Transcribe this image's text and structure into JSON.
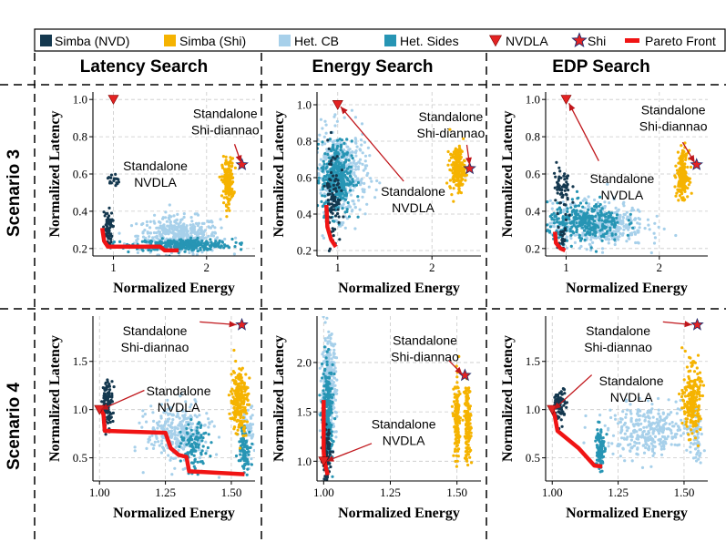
{
  "legend": {
    "items": [
      {
        "label": "Simba (NVD)",
        "kind": "square",
        "color": "#14384f"
      },
      {
        "label": "Simba (Shi)",
        "kind": "square",
        "color": "#f5b301"
      },
      {
        "label": "Het. CB",
        "kind": "square",
        "color": "#a7d0ea"
      },
      {
        "label": "Het. Sides",
        "kind": "square",
        "color": "#2795b4"
      },
      {
        "label": "NVDLA",
        "kind": "triangle",
        "color": "#e32322"
      },
      {
        "label": "Shi",
        "kind": "star",
        "color": "#e32322"
      },
      {
        "label": "Pareto Front",
        "kind": "line",
        "color": "#f01414"
      }
    ]
  },
  "columns": [
    "Latency Search",
    "Energy Search",
    "EDP Search"
  ],
  "rows": [
    "Scenario 3",
    "Scenario 4"
  ],
  "colors": {
    "nvd": "#14384f",
    "shi": "#f5b301",
    "cb": "#a7d0ea",
    "sides": "#2795b4",
    "marker": "#e32322",
    "pareto": "#f01414",
    "grid": "#c9c9c9"
  },
  "chart_data": [
    {
      "id": "s3-latency",
      "type": "scatter",
      "title": "Latency Search",
      "scenario": "Scenario 3",
      "xlabel": "Normalized Energy",
      "ylabel": "Normalized Latency",
      "xlim": [
        0.78,
        2.52
      ],
      "ylim": [
        0.16,
        1.04
      ],
      "xticks": [
        1,
        2
      ],
      "yticks": [
        0.2,
        0.4,
        0.6,
        0.8,
        1.0
      ],
      "xticklabels": [
        "1",
        "2"
      ],
      "yticklabels": [
        "0.2",
        "0.4",
        "0.6",
        "0.8",
        "1.0"
      ],
      "clusters": [
        {
          "series": "cb",
          "cx": 1.7,
          "cy": 0.27,
          "sx": 0.22,
          "sy": 0.05,
          "n": 420
        },
        {
          "series": "sides",
          "cx": 1.75,
          "cy": 0.22,
          "sx": 0.26,
          "sy": 0.015,
          "n": 320
        },
        {
          "series": "nvd",
          "cx": 0.94,
          "cy": 0.3,
          "sx": 0.025,
          "sy": 0.05,
          "n": 70
        },
        {
          "series": "nvd",
          "cx": 1.0,
          "cy": 0.57,
          "sx": 0.03,
          "sy": 0.02,
          "n": 18
        },
        {
          "series": "shi",
          "cx": 2.23,
          "cy": 0.56,
          "sx": 0.03,
          "sy": 0.06,
          "n": 200
        }
      ],
      "pareto": [
        [
          0.88,
          0.31
        ],
        [
          0.9,
          0.24
        ],
        [
          0.94,
          0.21
        ],
        [
          1.5,
          0.21
        ],
        [
          1.55,
          0.19
        ],
        [
          1.7,
          0.19
        ]
      ],
      "nvdla": [
        1.0,
        1.0
      ],
      "shi_star": [
        2.38,
        0.65
      ],
      "annotations": [
        {
          "text": "Standalone\nShi-diannao",
          "at": [
            2.2,
            0.9
          ]
        },
        {
          "text": "Standalone\nNVDLA",
          "at": [
            1.45,
            0.62
          ]
        }
      ],
      "arrows": [
        {
          "from": [
            2.3,
            0.76
          ],
          "to": [
            2.37,
            0.66
          ]
        }
      ]
    },
    {
      "id": "s3-energy",
      "type": "scatter",
      "title": "Energy Search",
      "scenario": "Scenario 3",
      "xlabel": "Normalized Energy",
      "ylabel": "Normalized Latency",
      "xlim": [
        0.78,
        2.52
      ],
      "ylim": [
        0.17,
        1.07
      ],
      "xticks": [
        1,
        2
      ],
      "yticks": [
        0.2,
        0.4,
        0.6,
        0.8,
        1.0
      ],
      "xticklabels": [
        "1",
        "2"
      ],
      "yticklabels": [
        "0.2",
        "0.4",
        "0.6",
        "0.8",
        "1.0"
      ],
      "clusters": [
        {
          "series": "cb",
          "cx": 1.03,
          "cy": 0.62,
          "sx": 0.14,
          "sy": 0.12,
          "n": 450
        },
        {
          "series": "sides",
          "cx": 0.99,
          "cy": 0.6,
          "sx": 0.08,
          "sy": 0.1,
          "n": 350
        },
        {
          "series": "nvd",
          "cx": 0.95,
          "cy": 0.5,
          "sx": 0.04,
          "sy": 0.14,
          "n": 90
        },
        {
          "series": "shi",
          "cx": 2.27,
          "cy": 0.65,
          "sx": 0.04,
          "sy": 0.06,
          "n": 200
        }
      ],
      "pareto": [
        [
          0.88,
          0.45
        ],
        [
          0.89,
          0.33
        ],
        [
          0.93,
          0.26
        ],
        [
          0.98,
          0.22
        ]
      ],
      "nvdla": [
        1.0,
        1.0
      ],
      "shi_star": [
        2.4,
        0.65
      ],
      "annotations": [
        {
          "text": "Standalone\nShi-diannao",
          "at": [
            2.2,
            0.91
          ]
        },
        {
          "text": "Standalone\nNVDLA",
          "at": [
            1.8,
            0.5
          ]
        }
      ],
      "arrows": [
        {
          "from": [
            2.37,
            0.78
          ],
          "to": [
            2.4,
            0.67
          ]
        },
        {
          "from": [
            1.7,
            0.58
          ],
          "to": [
            1.03,
            0.99
          ]
        }
      ]
    },
    {
      "id": "s3-edp",
      "type": "scatter",
      "title": "EDP Search",
      "scenario": "Scenario 3",
      "xlabel": "Normalized Energy",
      "ylabel": "Normalized Latency",
      "xlim": [
        0.78,
        2.52
      ],
      "ylim": [
        0.16,
        1.04
      ],
      "xticks": [
        1,
        2
      ],
      "yticks": [
        0.2,
        0.4,
        0.6,
        0.8,
        1.0
      ],
      "xticklabels": [
        "1",
        "2"
      ],
      "yticklabels": [
        "0.2",
        "0.4",
        "0.6",
        "0.8",
        "1.0"
      ],
      "clusters": [
        {
          "series": "cb",
          "cx": 1.35,
          "cy": 0.33,
          "sx": 0.25,
          "sy": 0.06,
          "n": 450
        },
        {
          "series": "sides",
          "cx": 1.2,
          "cy": 0.34,
          "sx": 0.2,
          "sy": 0.05,
          "n": 320
        },
        {
          "series": "nvd",
          "cx": 0.96,
          "cy": 0.5,
          "sx": 0.05,
          "sy": 0.08,
          "n": 60
        },
        {
          "series": "nvd",
          "cx": 0.95,
          "cy": 0.25,
          "sx": 0.03,
          "sy": 0.03,
          "n": 25
        },
        {
          "series": "shi",
          "cx": 2.25,
          "cy": 0.6,
          "sx": 0.03,
          "sy": 0.06,
          "n": 200
        }
      ],
      "pareto": [
        [
          0.88,
          0.29
        ],
        [
          0.89,
          0.23
        ],
        [
          0.94,
          0.2
        ],
        [
          0.99,
          0.19
        ]
      ],
      "nvdla": [
        1.0,
        1.0
      ],
      "shi_star": [
        2.4,
        0.65
      ],
      "annotations": [
        {
          "text": "Standalone\nShi-diannao",
          "at": [
            2.15,
            0.92
          ]
        },
        {
          "text": "Standalone\nNVDLA",
          "at": [
            1.6,
            0.55
          ]
        }
      ],
      "arrows": [
        {
          "from": [
            2.25,
            0.77
          ],
          "to": [
            2.38,
            0.66
          ]
        },
        {
          "from": [
            1.35,
            0.67
          ],
          "to": [
            1.03,
            0.98
          ]
        }
      ]
    },
    {
      "id": "s4-latency",
      "type": "scatter",
      "title": "Latency Search",
      "scenario": "Scenario 4",
      "xlabel": "Normalized Energy",
      "ylabel": "Normalized Latency",
      "xlim": [
        0.975,
        1.59
      ],
      "ylim": [
        0.26,
        1.97
      ],
      "xticks": [
        1.0,
        1.25,
        1.5
      ],
      "yticks": [
        0.5,
        1.0,
        1.5
      ],
      "xticklabels": [
        "1.00",
        "1.25",
        "1.50"
      ],
      "yticklabels": [
        "0.5",
        "1.0",
        "1.5"
      ],
      "clusters": [
        {
          "series": "cb",
          "cx": 1.3,
          "cy": 0.75,
          "sx": 0.06,
          "sy": 0.15,
          "n": 300
        },
        {
          "series": "cb",
          "cx": 1.56,
          "cy": 0.75,
          "sx": 0.012,
          "sy": 0.15,
          "n": 60
        },
        {
          "series": "sides",
          "cx": 1.36,
          "cy": 0.6,
          "sx": 0.025,
          "sy": 0.12,
          "n": 100
        },
        {
          "series": "sides",
          "cx": 1.55,
          "cy": 0.6,
          "sx": 0.012,
          "sy": 0.12,
          "n": 80
        },
        {
          "series": "nvd",
          "cx": 1.03,
          "cy": 1.07,
          "sx": 0.01,
          "sy": 0.12,
          "n": 120
        },
        {
          "series": "shi",
          "cx": 1.53,
          "cy": 1.1,
          "sx": 0.016,
          "sy": 0.17,
          "n": 240
        }
      ],
      "pareto": [
        [
          1.0,
          1.03
        ],
        [
          1.015,
          0.95
        ],
        [
          1.02,
          0.78
        ],
        [
          1.25,
          0.76
        ],
        [
          1.27,
          0.6
        ],
        [
          1.3,
          0.53
        ],
        [
          1.33,
          0.51
        ],
        [
          1.34,
          0.36
        ],
        [
          1.55,
          0.33
        ]
      ],
      "nvdla": [
        1.0,
        1.0
      ],
      "shi_star": [
        1.54,
        1.88
      ],
      "annotations": [
        {
          "text": "Standalone\nShi-diannao",
          "at": [
            1.21,
            1.77
          ]
        },
        {
          "text": "Standalone\nNVDLA",
          "at": [
            1.3,
            1.15
          ]
        }
      ],
      "arrows": [
        {
          "from": [
            1.38,
            1.91
          ],
          "to": [
            1.52,
            1.88
          ]
        },
        {
          "from": [
            1.17,
            1.2
          ],
          "to": [
            1.005,
            1.0
          ]
        }
      ]
    },
    {
      "id": "s4-energy",
      "type": "scatter",
      "title": "Energy Search",
      "scenario": "Scenario 4",
      "xlabel": "Normalized Energy",
      "ylabel": "Normalized Latency",
      "xlim": [
        0.975,
        1.59
      ],
      "ylim": [
        0.8,
        2.47
      ],
      "xticks": [
        1.0,
        1.25,
        1.5
      ],
      "yticks": [
        1.0,
        1.5,
        2.0
      ],
      "xticklabels": [
        "1.00",
        "1.25",
        "1.50"
      ],
      "yticklabels": [
        "1.0",
        "1.5",
        "2.0"
      ],
      "clusters": [
        {
          "series": "cb",
          "cx": 1.02,
          "cy": 1.75,
          "sx": 0.014,
          "sy": 0.25,
          "n": 320
        },
        {
          "series": "sides",
          "cx": 1.015,
          "cy": 1.45,
          "sx": 0.01,
          "sy": 0.25,
          "n": 260
        },
        {
          "series": "nvd",
          "cx": 1.01,
          "cy": 1.05,
          "sx": 0.007,
          "sy": 0.13,
          "n": 100
        },
        {
          "series": "shi",
          "cx": 1.5,
          "cy": 1.4,
          "sx": 0.006,
          "sy": 0.2,
          "n": 150
        },
        {
          "series": "shi",
          "cx": 1.54,
          "cy": 1.4,
          "sx": 0.006,
          "sy": 0.2,
          "n": 150
        }
      ],
      "pareto": [
        [
          1.0,
          1.62
        ],
        [
          1.0,
          1.1
        ],
        [
          1.003,
          1.0
        ],
        [
          1.015,
          0.86
        ]
      ],
      "nvdla": [
        1.0,
        1.0
      ],
      "shi_star": [
        1.53,
        1.87
      ],
      "annotations": [
        {
          "text": "Standalone\nShi-diannao",
          "at": [
            1.38,
            2.18
          ]
        },
        {
          "text": "Standalone\nNVDLA",
          "at": [
            1.3,
            1.33
          ]
        }
      ],
      "arrows": [
        {
          "from": [
            1.47,
            2.02
          ],
          "to": [
            1.52,
            1.88
          ]
        },
        {
          "from": [
            1.18,
            1.18
          ],
          "to": [
            1.01,
            1.0
          ]
        }
      ]
    },
    {
      "id": "s4-edp",
      "type": "scatter",
      "title": "EDP Search",
      "scenario": "Scenario 4",
      "xlabel": "Normalized Energy",
      "ylabel": "Normalized Latency",
      "xlim": [
        0.975,
        1.59
      ],
      "ylim": [
        0.26,
        1.97
      ],
      "xticks": [
        1.0,
        1.25,
        1.5
      ],
      "yticks": [
        0.5,
        1.0,
        1.5
      ],
      "xticklabels": [
        "1.00",
        "1.25",
        "1.50"
      ],
      "yticklabels": [
        "0.5",
        "1.0",
        "1.5"
      ],
      "clusters": [
        {
          "series": "cb",
          "cx": 1.37,
          "cy": 0.78,
          "sx": 0.08,
          "sy": 0.13,
          "n": 320
        },
        {
          "series": "cb",
          "cx": 1.55,
          "cy": 0.75,
          "sx": 0.01,
          "sy": 0.15,
          "n": 50
        },
        {
          "series": "sides",
          "cx": 1.18,
          "cy": 0.6,
          "sx": 0.008,
          "sy": 0.12,
          "n": 120
        },
        {
          "series": "nvd",
          "cx": 1.03,
          "cy": 1.05,
          "sx": 0.012,
          "sy": 0.09,
          "n": 80
        },
        {
          "series": "shi",
          "cx": 1.53,
          "cy": 1.1,
          "sx": 0.016,
          "sy": 0.17,
          "n": 240
        }
      ],
      "pareto": [
        [
          1.0,
          1.0
        ],
        [
          1.01,
          0.93
        ],
        [
          1.02,
          0.78
        ],
        [
          1.1,
          0.6
        ],
        [
          1.16,
          0.42
        ],
        [
          1.19,
          0.41
        ]
      ],
      "nvdla": [
        1.0,
        1.0
      ],
      "shi_star": [
        1.55,
        1.88
      ],
      "annotations": [
        {
          "text": "Standalone\nShi-diannao",
          "at": [
            1.25,
            1.77
          ]
        },
        {
          "text": "Standalone\nNVDLA",
          "at": [
            1.3,
            1.25
          ]
        }
      ],
      "arrows": [
        {
          "from": [
            1.42,
            1.91
          ],
          "to": [
            1.53,
            1.88
          ]
        },
        {
          "from": [
            1.15,
            1.36
          ],
          "to": [
            1.005,
            1.0
          ]
        }
      ]
    }
  ]
}
